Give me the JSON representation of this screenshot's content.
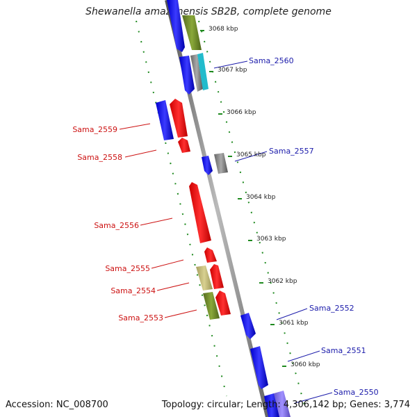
{
  "title": "Shewanella amazonensis SB2B, complete genome",
  "accession": "Accession: NC_008700",
  "topology": "Topology: circular; Length: 4,306,142 bp; Genes: 3,774",
  "ticks": [
    "3068 kbp",
    "3067 kbp",
    "3066 kbp",
    "3065 kbp",
    "3064 kbp",
    "3063 kbp",
    "3062 kbp",
    "3061 kbp",
    "3060 kbp"
  ],
  "gene_labels": {
    "plus": [
      "Sama_2560",
      "Sama_2557",
      "Sama_2552",
      "Sama_2551",
      "Sama_2550"
    ],
    "minus": [
      "Sama_2559",
      "Sama_2558",
      "Sama_2556",
      "Sama_2555",
      "Sama_2554",
      "Sama_2553"
    ]
  },
  "colors": {
    "backbone": "#808080",
    "tick_green": "#1f8a1f",
    "gene_blue": "#1010ee",
    "gene_red": "#ee1111",
    "gene_olive": "#6b8e23",
    "gene_khaki": "#bdb76b",
    "gene_cyan": "#22bbcc",
    "gene_gray": "#8a8a8a",
    "gene_purple": "#7b68ee",
    "label_blue": "#1a1aaa",
    "label_red": "#cc1111"
  }
}
